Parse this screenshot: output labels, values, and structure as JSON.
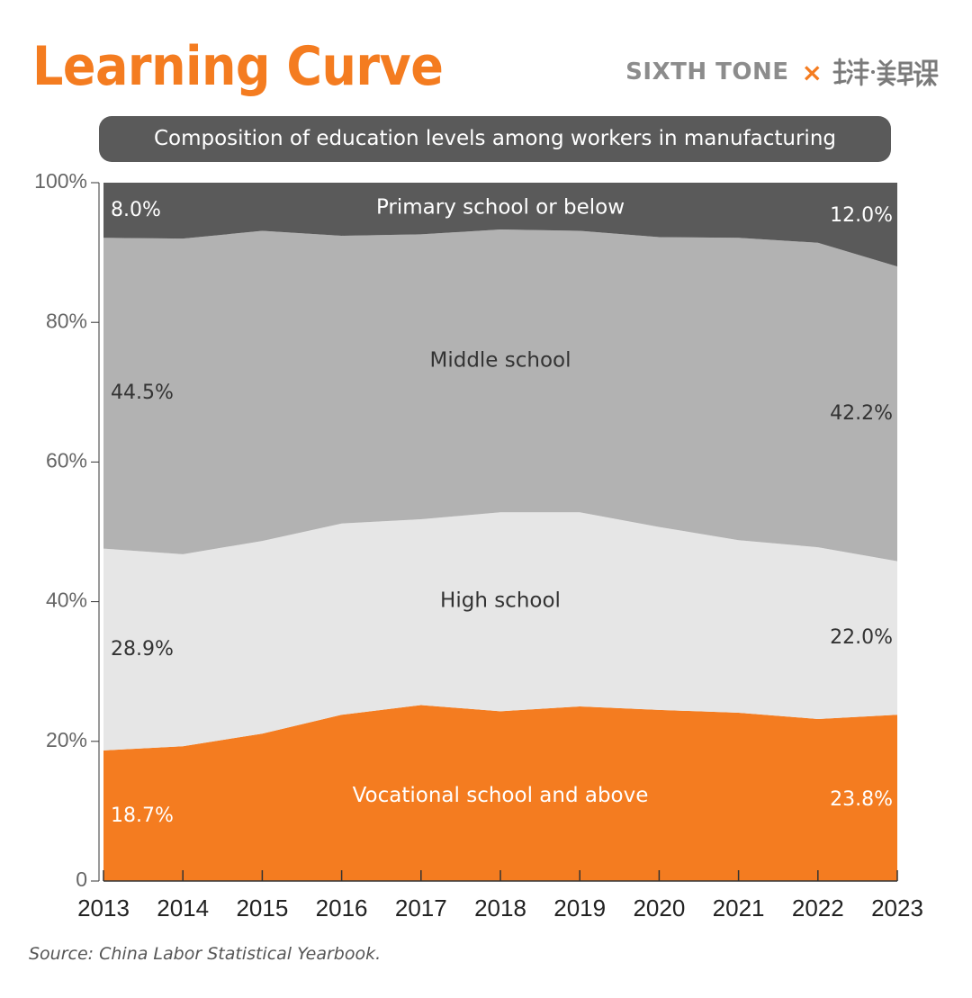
{
  "header": {
    "title": "Learning Curve",
    "brand": "SIXTH TONE",
    "brand_separator": "×",
    "partner_logo": "澎湃·美数课"
  },
  "chart_data": {
    "type": "area",
    "stacked": true,
    "title": "Composition of education levels among workers in manufacturing",
    "x": [
      "2013",
      "2014",
      "2015",
      "2016",
      "2017",
      "2018",
      "2019",
      "2020",
      "2021",
      "2022",
      "2023"
    ],
    "ylim": [
      0,
      100
    ],
    "yticks": [
      0,
      20,
      40,
      60,
      80,
      100
    ],
    "ytick_labels": [
      "0",
      "20%",
      "40%",
      "60%",
      "80%",
      "100%"
    ],
    "grid": false,
    "series": [
      {
        "name": "Vocational school and above",
        "color": "#f47c20",
        "values": [
          18.7,
          19.3,
          21.1,
          23.8,
          25.2,
          24.3,
          25.0,
          24.5,
          24.1,
          23.2,
          23.8
        ],
        "start_label": "18.7%",
        "end_label": "23.8%"
      },
      {
        "name": "High school",
        "color": "#e6e6e6",
        "values": [
          28.9,
          27.5,
          27.6,
          27.4,
          26.6,
          28.5,
          27.8,
          26.2,
          24.7,
          24.6,
          22.0
        ],
        "start_label": "28.9%",
        "end_label": "22.0%"
      },
      {
        "name": "Middle school",
        "color": "#b2b2b2",
        "values": [
          44.5,
          45.2,
          44.4,
          41.2,
          40.8,
          40.5,
          40.3,
          41.5,
          43.3,
          43.6,
          42.2
        ],
        "start_label": "44.5%",
        "end_label": "42.2%"
      },
      {
        "name": "Primary school or below",
        "color": "#5a5a5a",
        "values": [
          8.0,
          8.0,
          6.9,
          7.6,
          7.4,
          6.7,
          6.9,
          7.8,
          7.9,
          8.6,
          12.0
        ],
        "start_label": "8.0%",
        "end_label": "12.0%"
      }
    ]
  },
  "footer": {
    "source": "Source: China Labor Statistical Yearbook."
  }
}
